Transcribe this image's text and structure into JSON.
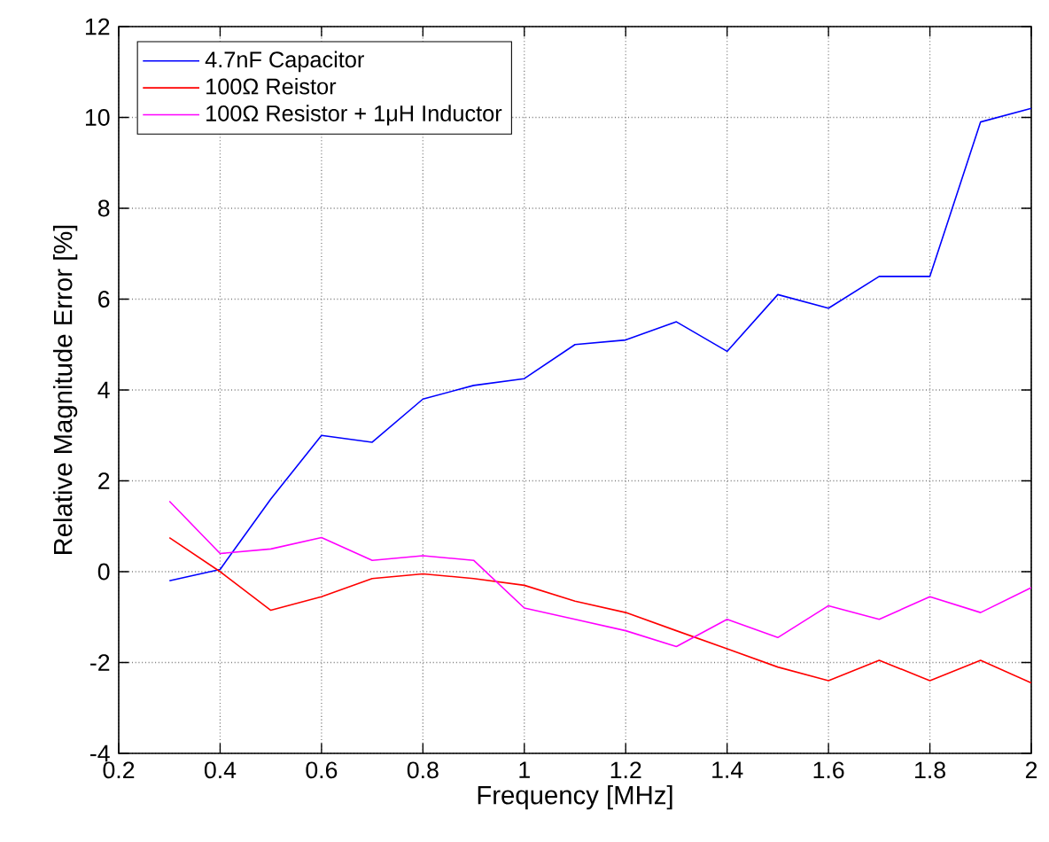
{
  "chart_data": {
    "type": "line",
    "xlabel": "Frequency [MHz]",
    "ylabel": "Relative Magnitude Error [%]",
    "x": [
      0.3,
      0.4,
      0.5,
      0.6,
      0.7,
      0.8,
      0.9,
      1.0,
      1.1,
      1.2,
      1.3,
      1.4,
      1.5,
      1.6,
      1.7,
      1.8,
      1.9,
      2.0
    ],
    "series": [
      {
        "name": "4.7nF Capacitor",
        "color": "#0000ff",
        "values": [
          -0.2,
          0.05,
          1.6,
          3.0,
          2.85,
          3.8,
          4.1,
          4.25,
          5.0,
          5.1,
          5.5,
          4.85,
          6.1,
          5.8,
          6.5,
          6.5,
          9.9,
          10.2
        ]
      },
      {
        "name": "100Ω Reistor",
        "color": "#ff0000",
        "values": [
          0.75,
          0.0,
          -0.85,
          -0.55,
          -0.15,
          -0.05,
          -0.15,
          -0.3,
          -0.65,
          -0.9,
          -1.3,
          -1.7,
          -2.1,
          -2.4,
          -1.95,
          -2.4,
          -1.95,
          -2.45
        ]
      },
      {
        "name": "100Ω Resistor + 1μH Inductor",
        "color": "#ff00ff",
        "values": [
          1.55,
          0.4,
          0.5,
          0.75,
          0.25,
          0.35,
          0.25,
          -0.8,
          -1.05,
          -1.3,
          -1.65,
          -1.05,
          -1.45,
          -0.75,
          -1.05,
          -0.55,
          -0.9,
          -0.35
        ]
      }
    ],
    "xlim": [
      0.2,
      2
    ],
    "ylim": [
      -4,
      12
    ],
    "xticks": [
      0.2,
      0.4,
      0.6,
      0.8,
      1,
      1.2,
      1.4,
      1.6,
      1.8,
      2
    ],
    "yticks": [
      -4,
      -2,
      0,
      2,
      4,
      6,
      8,
      10,
      12
    ],
    "grid": true,
    "legend": "top left",
    "line_style": "solid",
    "marker": "none"
  }
}
